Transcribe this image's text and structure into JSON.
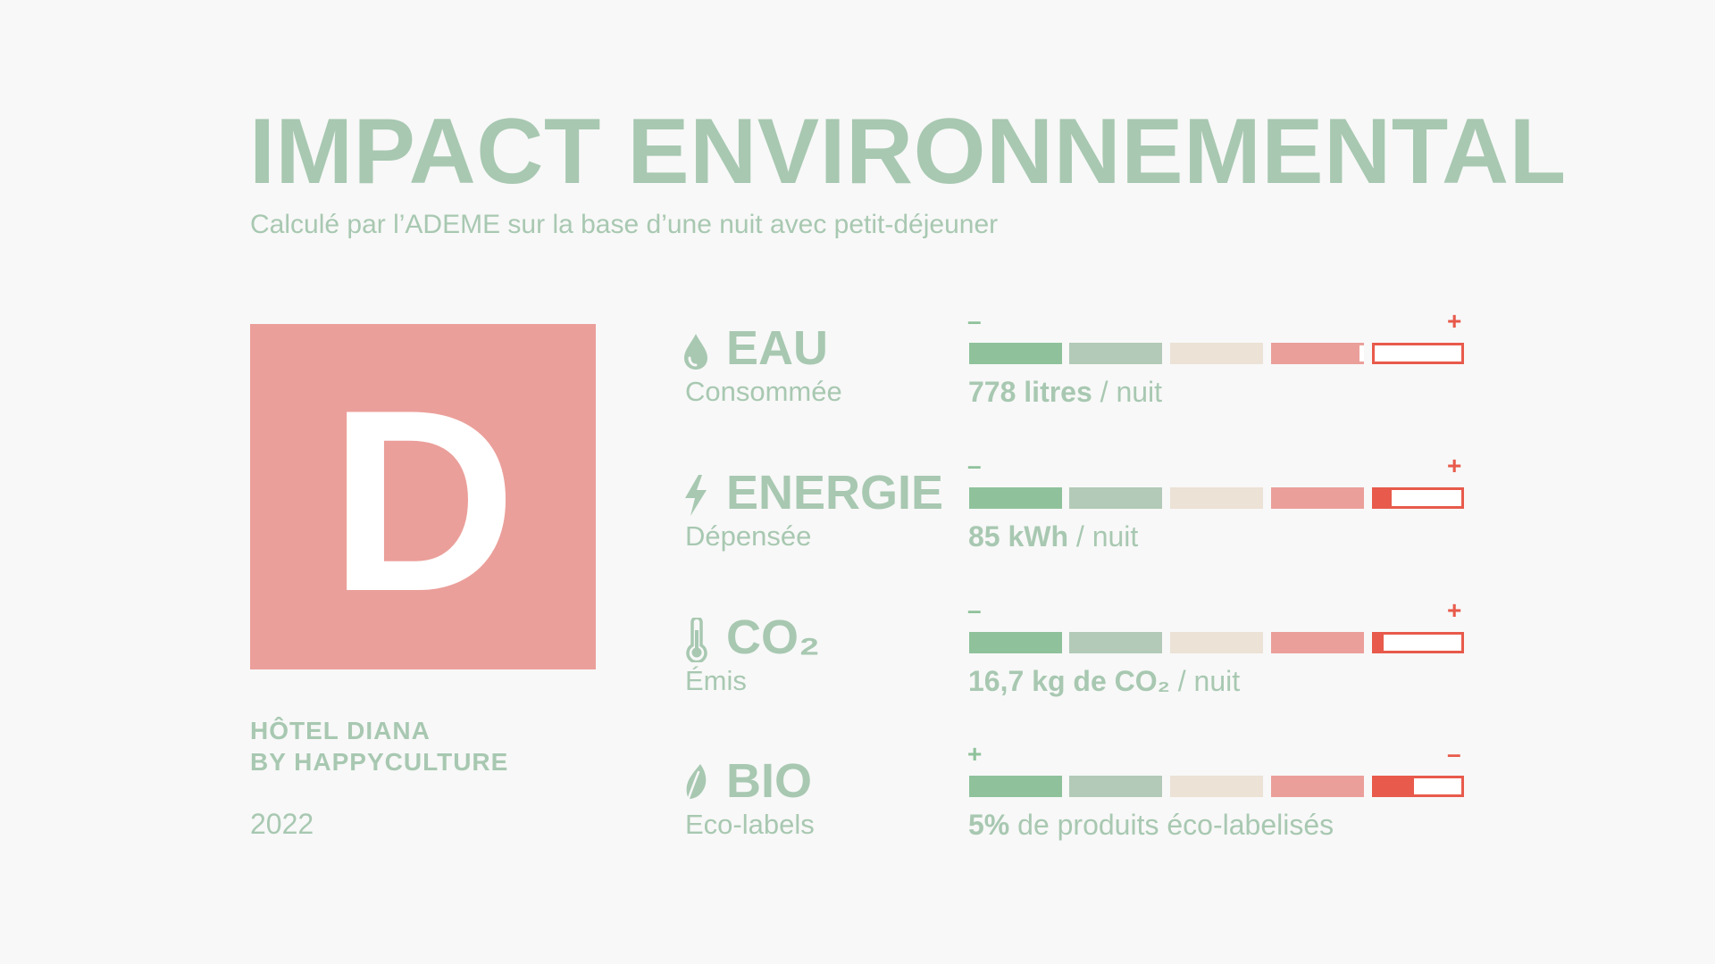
{
  "header": {
    "title": "IMPACT ENVIRONNEMENTAL",
    "subtitle": "Calculé par l’ADEME sur la base d’une nuit avec petit-déjeuner"
  },
  "grade": {
    "letter": "D",
    "color": "#eb9f9a"
  },
  "hotel": {
    "line1": "HÔTEL DIANA",
    "line2": "BY HAPPYCULTURE",
    "year": "2022"
  },
  "colors": {
    "accent": "#a8c8b1",
    "scale": [
      "#8fc29b",
      "#b2cab7",
      "#ece2d5",
      "#eb9f9a",
      "#e85a4b"
    ]
  },
  "metrics": [
    {
      "icon": "water-drop-icon",
      "title": "EAU",
      "subtitle": "Consommée",
      "value_bold": "778 litres",
      "value_rest": " / nuit",
      "sign_left": "–",
      "sign_right": "+",
      "fifth_segment_fill": 0.0,
      "fourth_segment_marker": 0.95
    },
    {
      "icon": "lightning-bolt-icon",
      "title": "ENERGIE",
      "subtitle": "Dépensée",
      "value_bold": "85 kWh",
      "value_rest": " / nuit",
      "sign_left": "–",
      "sign_right": "+",
      "fifth_segment_fill": 0.2,
      "fourth_segment_marker": null
    },
    {
      "icon": "thermometer-icon",
      "title": "CO₂",
      "subtitle": "Émis",
      "value_bold": "16,7 kg de CO₂",
      "value_rest": " / nuit",
      "sign_left": "–",
      "sign_right": "+",
      "fifth_segment_fill": 0.1,
      "fourth_segment_marker": null
    },
    {
      "icon": "leaf-icon",
      "title": "BIO",
      "subtitle": "Eco-labels",
      "value_bold": "5%",
      "value_rest": " de produits éco-labelisés",
      "sign_left": "+",
      "sign_right": "–",
      "fifth_segment_fill": 0.45,
      "fourth_segment_marker": null
    }
  ]
}
